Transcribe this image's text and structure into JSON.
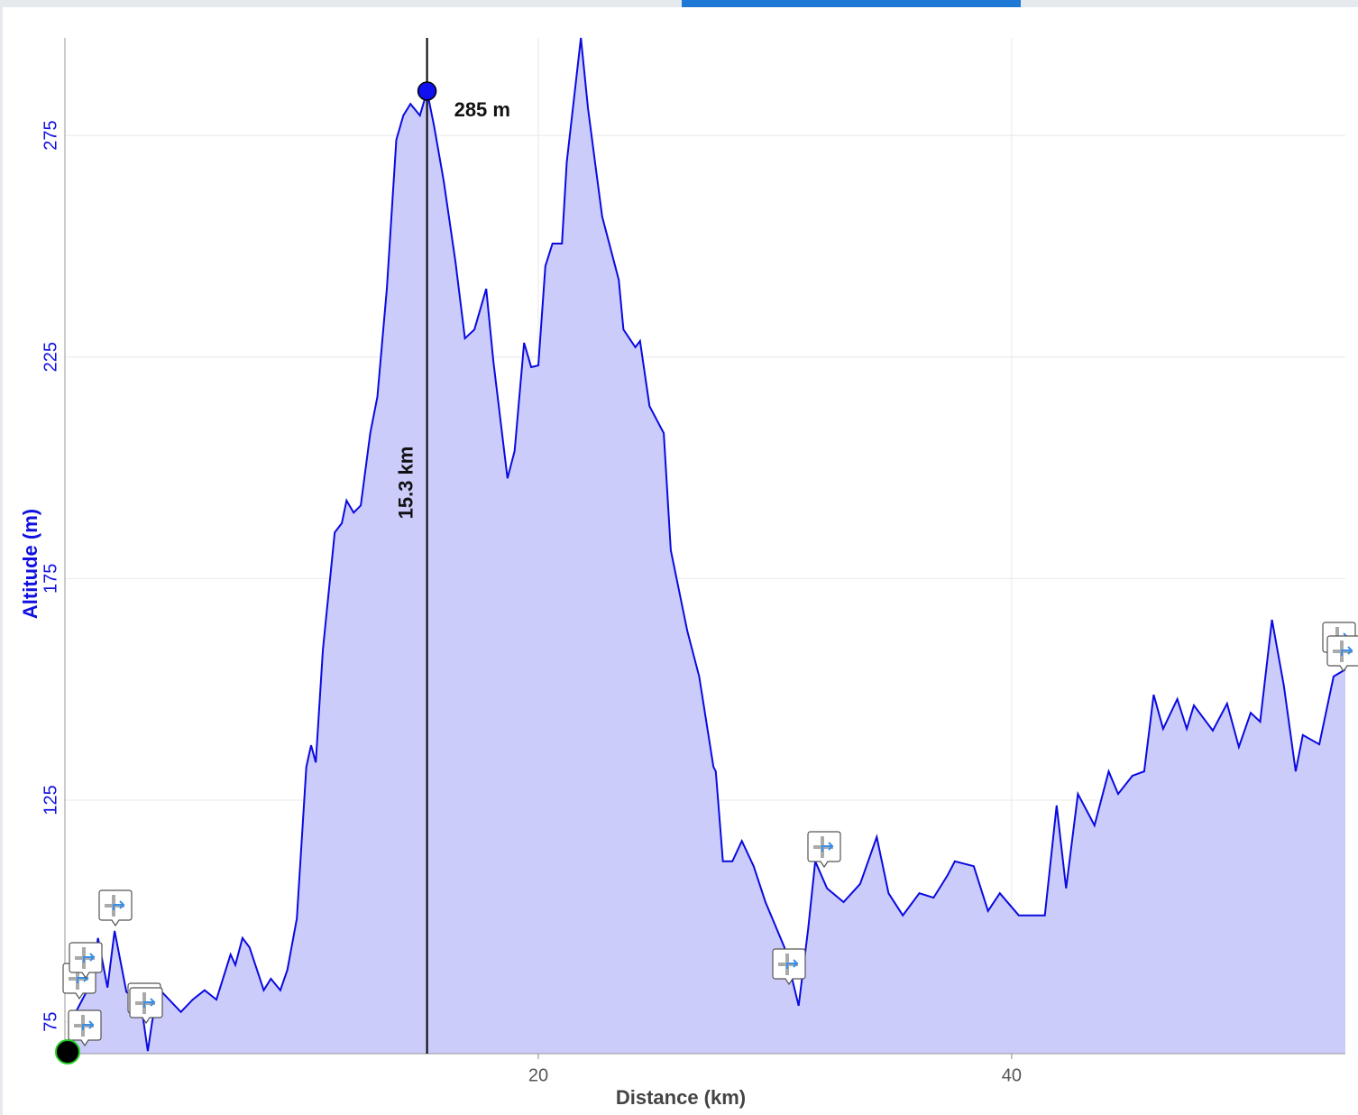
{
  "chart_data": {
    "type": "area",
    "x_label": "Distance (km)",
    "y_label": "Altitude (m)",
    "x": [
      0.1,
      0.5,
      1.1,
      1.4,
      1.8,
      2.1,
      2.6,
      3.2,
      3.5,
      3.7,
      4.1,
      4.9,
      5.4,
      5.9,
      6.4,
      7.0,
      7.2,
      7.5,
      7.8,
      8.4,
      8.7,
      9.1,
      9.4,
      9.8,
      10.2,
      10.4,
      10.6,
      10.9,
      11.4,
      11.7,
      11.9,
      12.2,
      12.5,
      12.9,
      13.2,
      13.6,
      14.0,
      14.3,
      14.6,
      15.0,
      15.3,
      15.6,
      16.0,
      16.5,
      16.9,
      17.3,
      17.8,
      18.1,
      18.7,
      19.0,
      19.4,
      19.7,
      20.0,
      20.3,
      20.6,
      21.0,
      21.2,
      21.8,
      22.1,
      22.4,
      22.7,
      23.4,
      23.6,
      24.1,
      24.3,
      24.7,
      25.3,
      25.6,
      26.3,
      26.8,
      27.4,
      27.5,
      27.8,
      28.2,
      28.6,
      29.1,
      29.6,
      30.0,
      30.4,
      31.0,
      31.4,
      31.7,
      32.2,
      32.9,
      33.6,
      34.3,
      34.8,
      35.4,
      36.1,
      36.7,
      37.3,
      37.6,
      38.4,
      39.0,
      39.5,
      40.3,
      41.4,
      41.9,
      42.3,
      42.8,
      43.5,
      44.1,
      44.5,
      45.1,
      45.6,
      46.0,
      46.4,
      47.0,
      47.4,
      47.7,
      48.5,
      49.1,
      49.6,
      50.1,
      50.5,
      51.0,
      51.5,
      52.0,
      52.3,
      53.0,
      53.6,
      54.1
    ],
    "values": [
      69.4,
      77.6,
      83.7,
      93.9,
      82.7,
      95.5,
      81.7,
      79.6,
      68.4,
      75.5,
      81.7,
      77.2,
      80.0,
      82.1,
      80.0,
      90.2,
      87.8,
      93.9,
      91.8,
      82.1,
      84.7,
      82.1,
      86.7,
      98.3,
      132.5,
      137.4,
      133.5,
      159.0,
      185.4,
      187.5,
      192.6,
      189.9,
      191.5,
      207.8,
      216.0,
      240.4,
      274.0,
      279.5,
      282.1,
      279.5,
      285,
      277.0,
      264.8,
      246.5,
      229.2,
      231.2,
      240.4,
      224.1,
      197.6,
      203.8,
      228.2,
      222.7,
      223.1,
      245.5,
      250.6,
      250.6,
      268.9,
      297.0,
      281.1,
      268.9,
      256.7,
      242.4,
      231.2,
      227.2,
      228.6,
      213.9,
      207.8,
      181.4,
      163.1,
      152.9,
      132.5,
      131.5,
      111.2,
      111.2,
      115.8,
      110.1,
      102.0,
      96.9,
      91.8,
      78.6,
      95.9,
      111.2,
      105.1,
      102.0,
      106.1,
      116.7,
      104.0,
      99.0,
      104.0,
      103.0,
      108.1,
      111.2,
      110.1,
      100.0,
      104.0,
      99.0,
      99.0,
      123.8,
      105.1,
      126.4,
      119.3,
      131.5,
      126.4,
      130.5,
      131.5,
      148.8,
      141.1,
      147.8,
      141.1,
      146.4,
      140.7,
      146.8,
      137.0,
      144.7,
      142.7,
      165.7,
      150.8,
      131.5,
      139.7,
      137.6,
      152.9,
      154.5
    ],
    "line_color": "#0a0ae0",
    "fill_color": "#ccccfb",
    "xlim": [
      0,
      54.1
    ],
    "ylim": [
      67.8,
      297
    ],
    "xticks": [
      20,
      40
    ],
    "yticks": [
      75,
      125,
      175,
      225,
      275
    ],
    "grid": true,
    "cursor": {
      "x": 15.3,
      "y": 285,
      "x_label": "15.3 km",
      "y_label": "285 m"
    }
  }
}
